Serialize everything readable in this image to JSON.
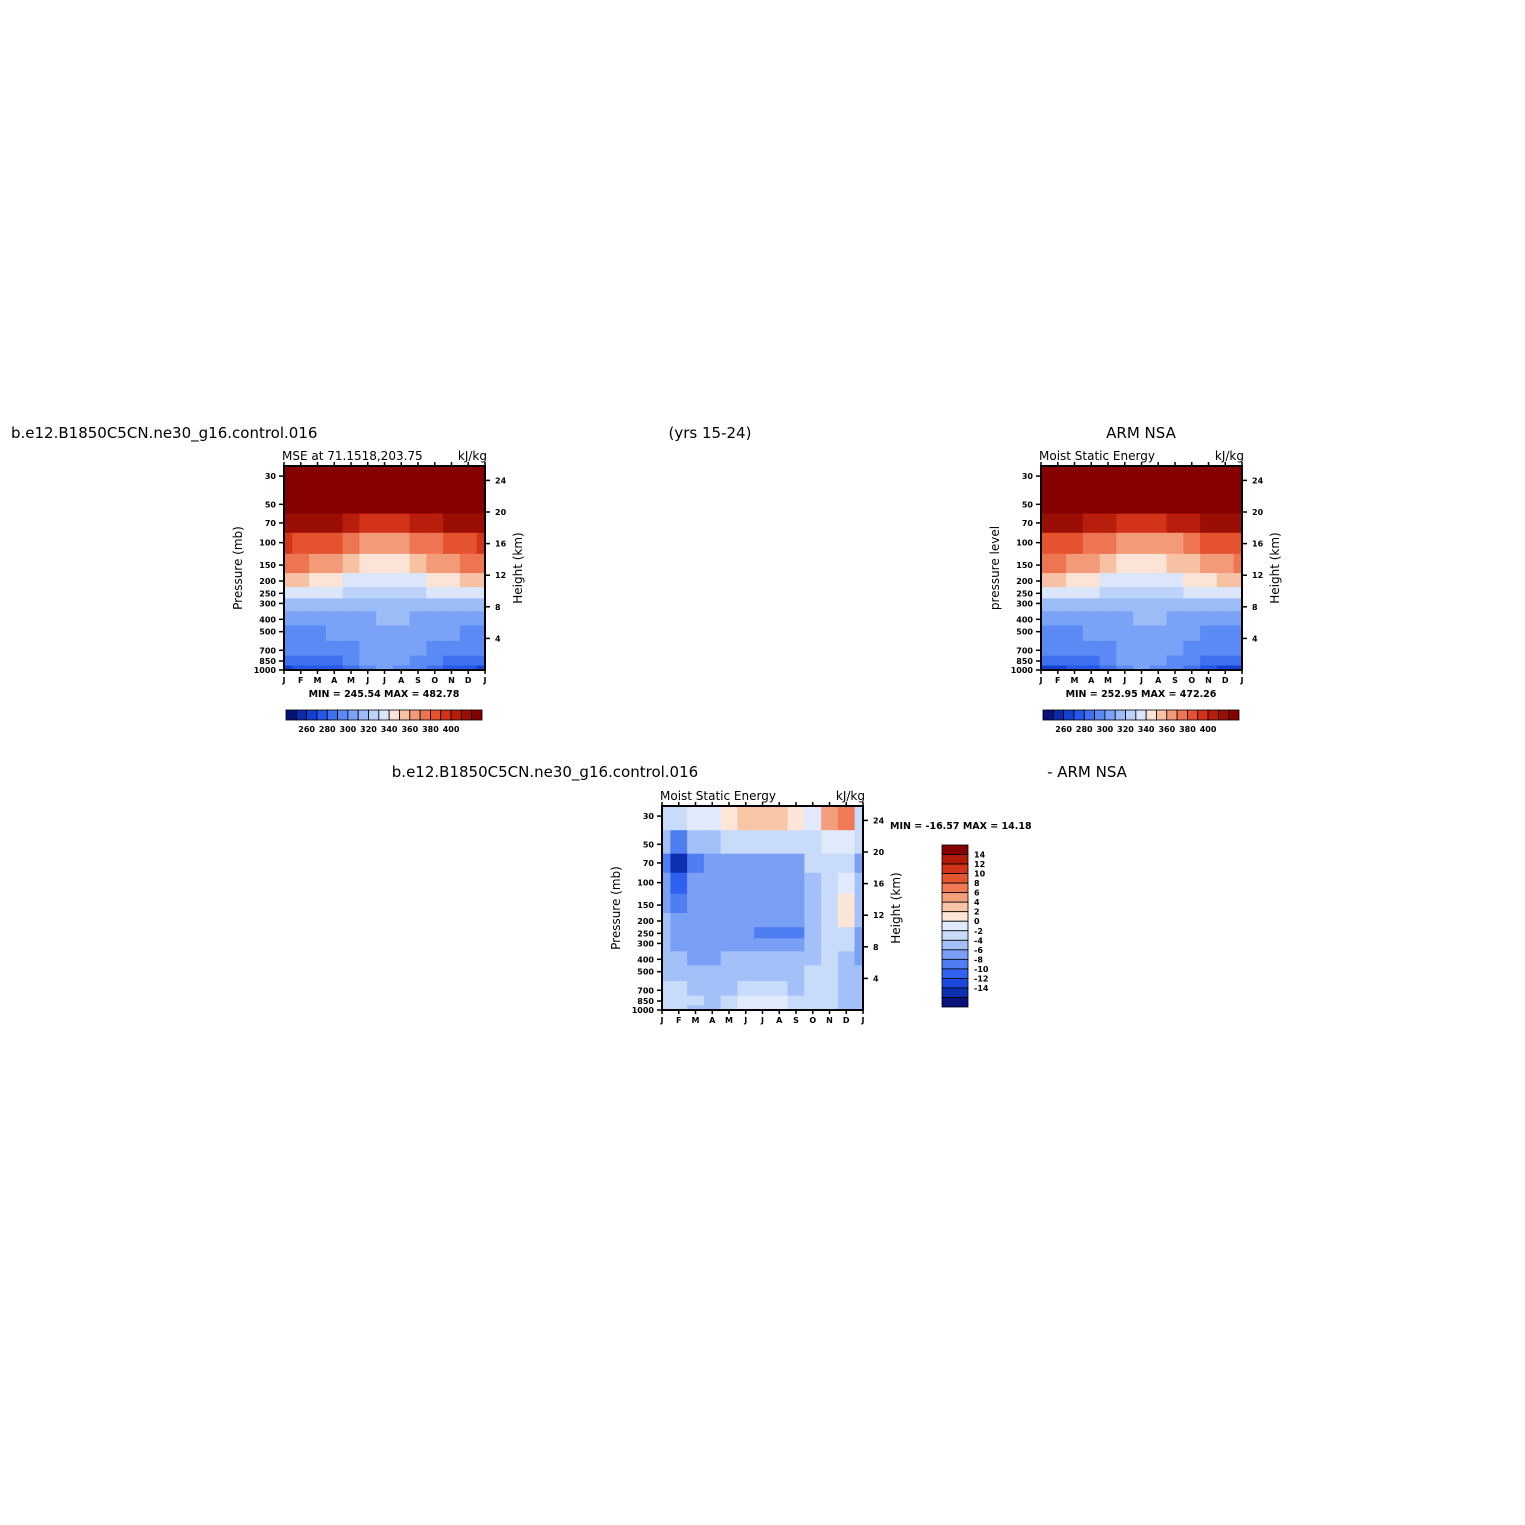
{
  "colors": {
    "palette": [
      "#08137a",
      "#0a2aa8",
      "#1340d0",
      "#2557e8",
      "#3e70f0",
      "#5b8af4",
      "#7aa2f6",
      "#9cbcf8",
      "#bdd2f9",
      "#dbe6fb",
      "#fbe3d6",
      "#f7c1a4",
      "#f39a78",
      "#ee7552",
      "#e5522e",
      "#d33318",
      "#b81e0c",
      "#9a0e06",
      "#870000"
    ],
    "diff_palette": [
      "#08137a",
      "#0f2fb2",
      "#1d48e0",
      "#3060ef",
      "#4f7ef3",
      "#7aa0f6",
      "#a3c0f8",
      "#c9dbfa",
      "#e0eafc",
      "#fde6d8",
      "#f8c5a6",
      "#f49f7b",
      "#ef7a55",
      "#e55530",
      "#d33318",
      "#b01b0a",
      "#870000"
    ]
  },
  "header": {
    "case_name": "b.e12.B1850C5CN.ne30_g16.control.016",
    "years": "(yrs 15-24)",
    "obs_name": "ARM NSA",
    "diff_case": "b.e12.B1850C5CN.ne30_g16.control.016",
    "diff_obs": "- ARM NSA"
  },
  "chart_data": [
    {
      "type": "heatmap",
      "panel": "model",
      "title": "MSE at 71.1518,203.75",
      "units": "kJ/kg",
      "ylabel": "Pressure (mb)",
      "y2label": "Height (km)",
      "x_ticks": [
        "J",
        "F",
        "M",
        "A",
        "M",
        "J",
        "J",
        "A",
        "S",
        "O",
        "N",
        "D",
        "J"
      ],
      "y_ticks": [
        30,
        50,
        70,
        100,
        150,
        200,
        250,
        300,
        400,
        500,
        700,
        850,
        1000
      ],
      "y2_ticks": [
        24,
        20,
        16,
        12,
        8,
        4
      ],
      "ylim": [
        1000,
        25
      ],
      "min_max": "MIN = 245.54 MAX = 482.78",
      "colorbar_labels": [
        "260",
        "280",
        "300",
        "320",
        "340",
        "360",
        "380",
        "400"
      ],
      "levels": [
        250,
        260,
        270,
        280,
        290,
        300,
        310,
        320,
        330,
        340,
        350,
        360,
        370,
        380,
        390,
        400,
        410,
        420
      ],
      "values": [
        [
          268,
          270,
          272,
          276,
          284,
          296,
          300,
          298,
          290,
          280,
          274,
          270,
          268
        ],
        [
          282,
          283,
          285,
          289,
          294,
          302,
          306,
          304,
          298,
          290,
          286,
          284,
          282
        ],
        [
          292,
          293,
          294,
          296,
          299,
          304,
          308,
          306,
          302,
          297,
          294,
          293,
          292
        ],
        [
          298,
          298,
          299,
          300,
          302,
          306,
          309,
          308,
          305,
          302,
          300,
          299,
          298
        ],
        [
          306,
          306,
          306,
          306,
          307,
          309,
          311,
          310,
          308,
          307,
          306,
          306,
          306
        ],
        [
          318,
          318,
          318,
          318,
          318,
          318,
          318,
          318,
          318,
          318,
          318,
          318,
          318
        ],
        [
          336,
          336,
          334,
          332,
          328,
          324,
          322,
          322,
          326,
          330,
          333,
          335,
          336
        ],
        [
          352,
          351,
          348,
          344,
          338,
          334,
          330,
          331,
          336,
          342,
          347,
          350,
          352
        ],
        [
          372,
          371,
          367,
          362,
          356,
          348,
          344,
          346,
          352,
          360,
          366,
          370,
          372
        ],
        [
          390,
          389,
          386,
          381,
          374,
          366,
          362,
          364,
          370,
          378,
          384,
          388,
          390
        ],
        [
          418,
          417,
          414,
          410,
          404,
          398,
          394,
          396,
          402,
          408,
          413,
          416,
          418
        ],
        [
          450,
          449,
          447,
          444,
          440,
          436,
          432,
          434,
          438,
          443,
          446,
          448,
          450
        ],
        [
          480,
          479,
          477,
          474,
          470,
          466,
          462,
          464,
          468,
          473,
          476,
          478,
          480
        ]
      ]
    },
    {
      "type": "heatmap",
      "panel": "obs",
      "title": "Moist Static Energy",
      "units": "kJ/kg",
      "ylabel": "pressure level",
      "y2label": "Height (km)",
      "x_ticks": [
        "J",
        "F",
        "M",
        "A",
        "M",
        "J",
        "J",
        "A",
        "S",
        "O",
        "N",
        "D",
        "J"
      ],
      "y_ticks": [
        30,
        50,
        70,
        100,
        150,
        200,
        250,
        300,
        400,
        500,
        700,
        850,
        1000
      ],
      "y2_ticks": [
        24,
        20,
        16,
        12,
        8,
        4
      ],
      "ylim": [
        1000,
        25
      ],
      "min_max": "MIN = 252.95 MAX = 472.26",
      "colorbar_labels": [
        "260",
        "280",
        "300",
        "320",
        "340",
        "360",
        "380",
        "400"
      ],
      "levels": [
        250,
        260,
        270,
        280,
        290,
        300,
        310,
        320,
        330,
        340,
        350,
        360,
        370,
        380,
        390,
        400,
        410,
        420
      ],
      "values": [
        [
          266,
          268,
          271,
          276,
          285,
          296,
          300,
          298,
          290,
          280,
          273,
          268,
          266
        ],
        [
          280,
          281,
          284,
          288,
          294,
          302,
          306,
          304,
          298,
          290,
          285,
          282,
          280
        ],
        [
          290,
          291,
          293,
          296,
          299,
          304,
          307,
          306,
          302,
          297,
          293,
          291,
          290
        ],
        [
          297,
          297,
          298,
          300,
          302,
          305,
          308,
          307,
          305,
          301,
          299,
          298,
          297
        ],
        [
          306,
          306,
          306,
          306,
          307,
          309,
          311,
          310,
          308,
          307,
          306,
          306,
          306
        ],
        [
          318,
          318,
          318,
          318,
          318,
          318,
          318,
          318,
          318,
          318,
          318,
          318,
          318
        ],
        [
          336,
          336,
          334,
          332,
          328,
          325,
          322,
          323,
          326,
          330,
          333,
          335,
          336
        ],
        [
          352,
          351,
          348,
          344,
          338,
          334,
          330,
          332,
          336,
          342,
          347,
          350,
          352
        ],
        [
          371,
          370,
          366,
          361,
          355,
          348,
          344,
          346,
          351,
          359,
          365,
          369,
          371
        ],
        [
          388,
          387,
          384,
          379,
          372,
          365,
          361,
          363,
          369,
          376,
          382,
          386,
          388
        ],
        [
          416,
          415,
          412,
          408,
          402,
          396,
          392,
          394,
          400,
          406,
          411,
          414,
          416
        ],
        [
          447,
          446,
          444,
          441,
          437,
          433,
          430,
          432,
          436,
          440,
          443,
          445,
          447
        ],
        [
          470,
          469,
          467,
          464,
          460,
          456,
          452,
          454,
          458,
          463,
          466,
          468,
          470
        ]
      ]
    },
    {
      "type": "heatmap",
      "panel": "difference",
      "title": "Moist Static Energy",
      "units": "kJ/kg",
      "ylabel": "Pressure (mb)",
      "y2label": "Height (km)",
      "x_ticks": [
        "J",
        "F",
        "M",
        "A",
        "M",
        "J",
        "J",
        "A",
        "S",
        "O",
        "N",
        "D",
        "J"
      ],
      "y_ticks": [
        30,
        50,
        70,
        100,
        150,
        200,
        250,
        300,
        400,
        500,
        700,
        850,
        1000
      ],
      "y2_ticks": [
        24,
        20,
        16,
        12,
        8,
        4
      ],
      "ylim": [
        1000,
        25
      ],
      "min_max": "MIN = -16.57 MAX =  14.18",
      "colorbar_labels": [
        "14",
        "12",
        "10",
        "8",
        "6",
        "4",
        "2",
        "0",
        "-2",
        "-4",
        "-6",
        "-8",
        "-10",
        "-12",
        "-14"
      ],
      "levels": [
        -14,
        -12,
        -10,
        -8,
        -6,
        -4,
        -2,
        0,
        2,
        4,
        6,
        8,
        10,
        12,
        14
      ],
      "values": [
        [
          -1,
          -1,
          -3,
          -3,
          -0.5,
          1,
          1,
          0.5,
          -1,
          -1,
          -1,
          -3,
          -3
        ],
        [
          -1,
          -1,
          -2,
          -3,
          -1,
          0.5,
          1,
          0.5,
          -1,
          -1,
          -1,
          -3,
          -3
        ],
        [
          -1,
          -1,
          -3,
          -3,
          -3,
          -1,
          -1,
          -1,
          -3,
          -1,
          -1,
          -3,
          -3
        ],
        [
          -3,
          -3,
          -3,
          -3,
          -3,
          -3,
          -3,
          -3,
          -3,
          -1,
          -1,
          -3,
          -3
        ],
        [
          -3,
          -3,
          -5,
          -5,
          -3,
          -3,
          -3,
          -3,
          -3,
          -3,
          -1,
          -3,
          -5
        ],
        [
          -3,
          -5,
          -5,
          -5,
          -5,
          -5,
          -5,
          -5,
          -5,
          -3,
          -1,
          -1,
          -5
        ],
        [
          -3,
          -5,
          -5,
          -5,
          -5,
          -5,
          -7,
          -7,
          -7,
          -3,
          -1,
          -1,
          -5
        ],
        [
          -3,
          -5,
          -5,
          -5,
          -5,
          -5,
          -5,
          -5,
          -5,
          -3,
          -1,
          2,
          -3
        ],
        [
          -5,
          -7,
          -5,
          -5,
          -5,
          -5,
          -5,
          -5,
          -5,
          -3,
          -1,
          3,
          -3
        ],
        [
          -5,
          -9,
          -5,
          -5,
          -5,
          -5,
          -5,
          -5,
          -5,
          -3,
          -1,
          1,
          -3
        ],
        [
          -7,
          -13,
          -7,
          -5,
          -5,
          -5,
          -5,
          -5,
          -5,
          -1,
          -1,
          -1,
          -5
        ],
        [
          -3,
          -7,
          -3,
          -3,
          -1,
          -1,
          -1,
          -1,
          -1,
          -1,
          0.5,
          1,
          -1
        ],
        [
          -1,
          -1,
          0.5,
          1,
          3,
          5,
          5,
          5,
          3,
          1,
          7,
          9,
          -1
        ]
      ]
    }
  ]
}
